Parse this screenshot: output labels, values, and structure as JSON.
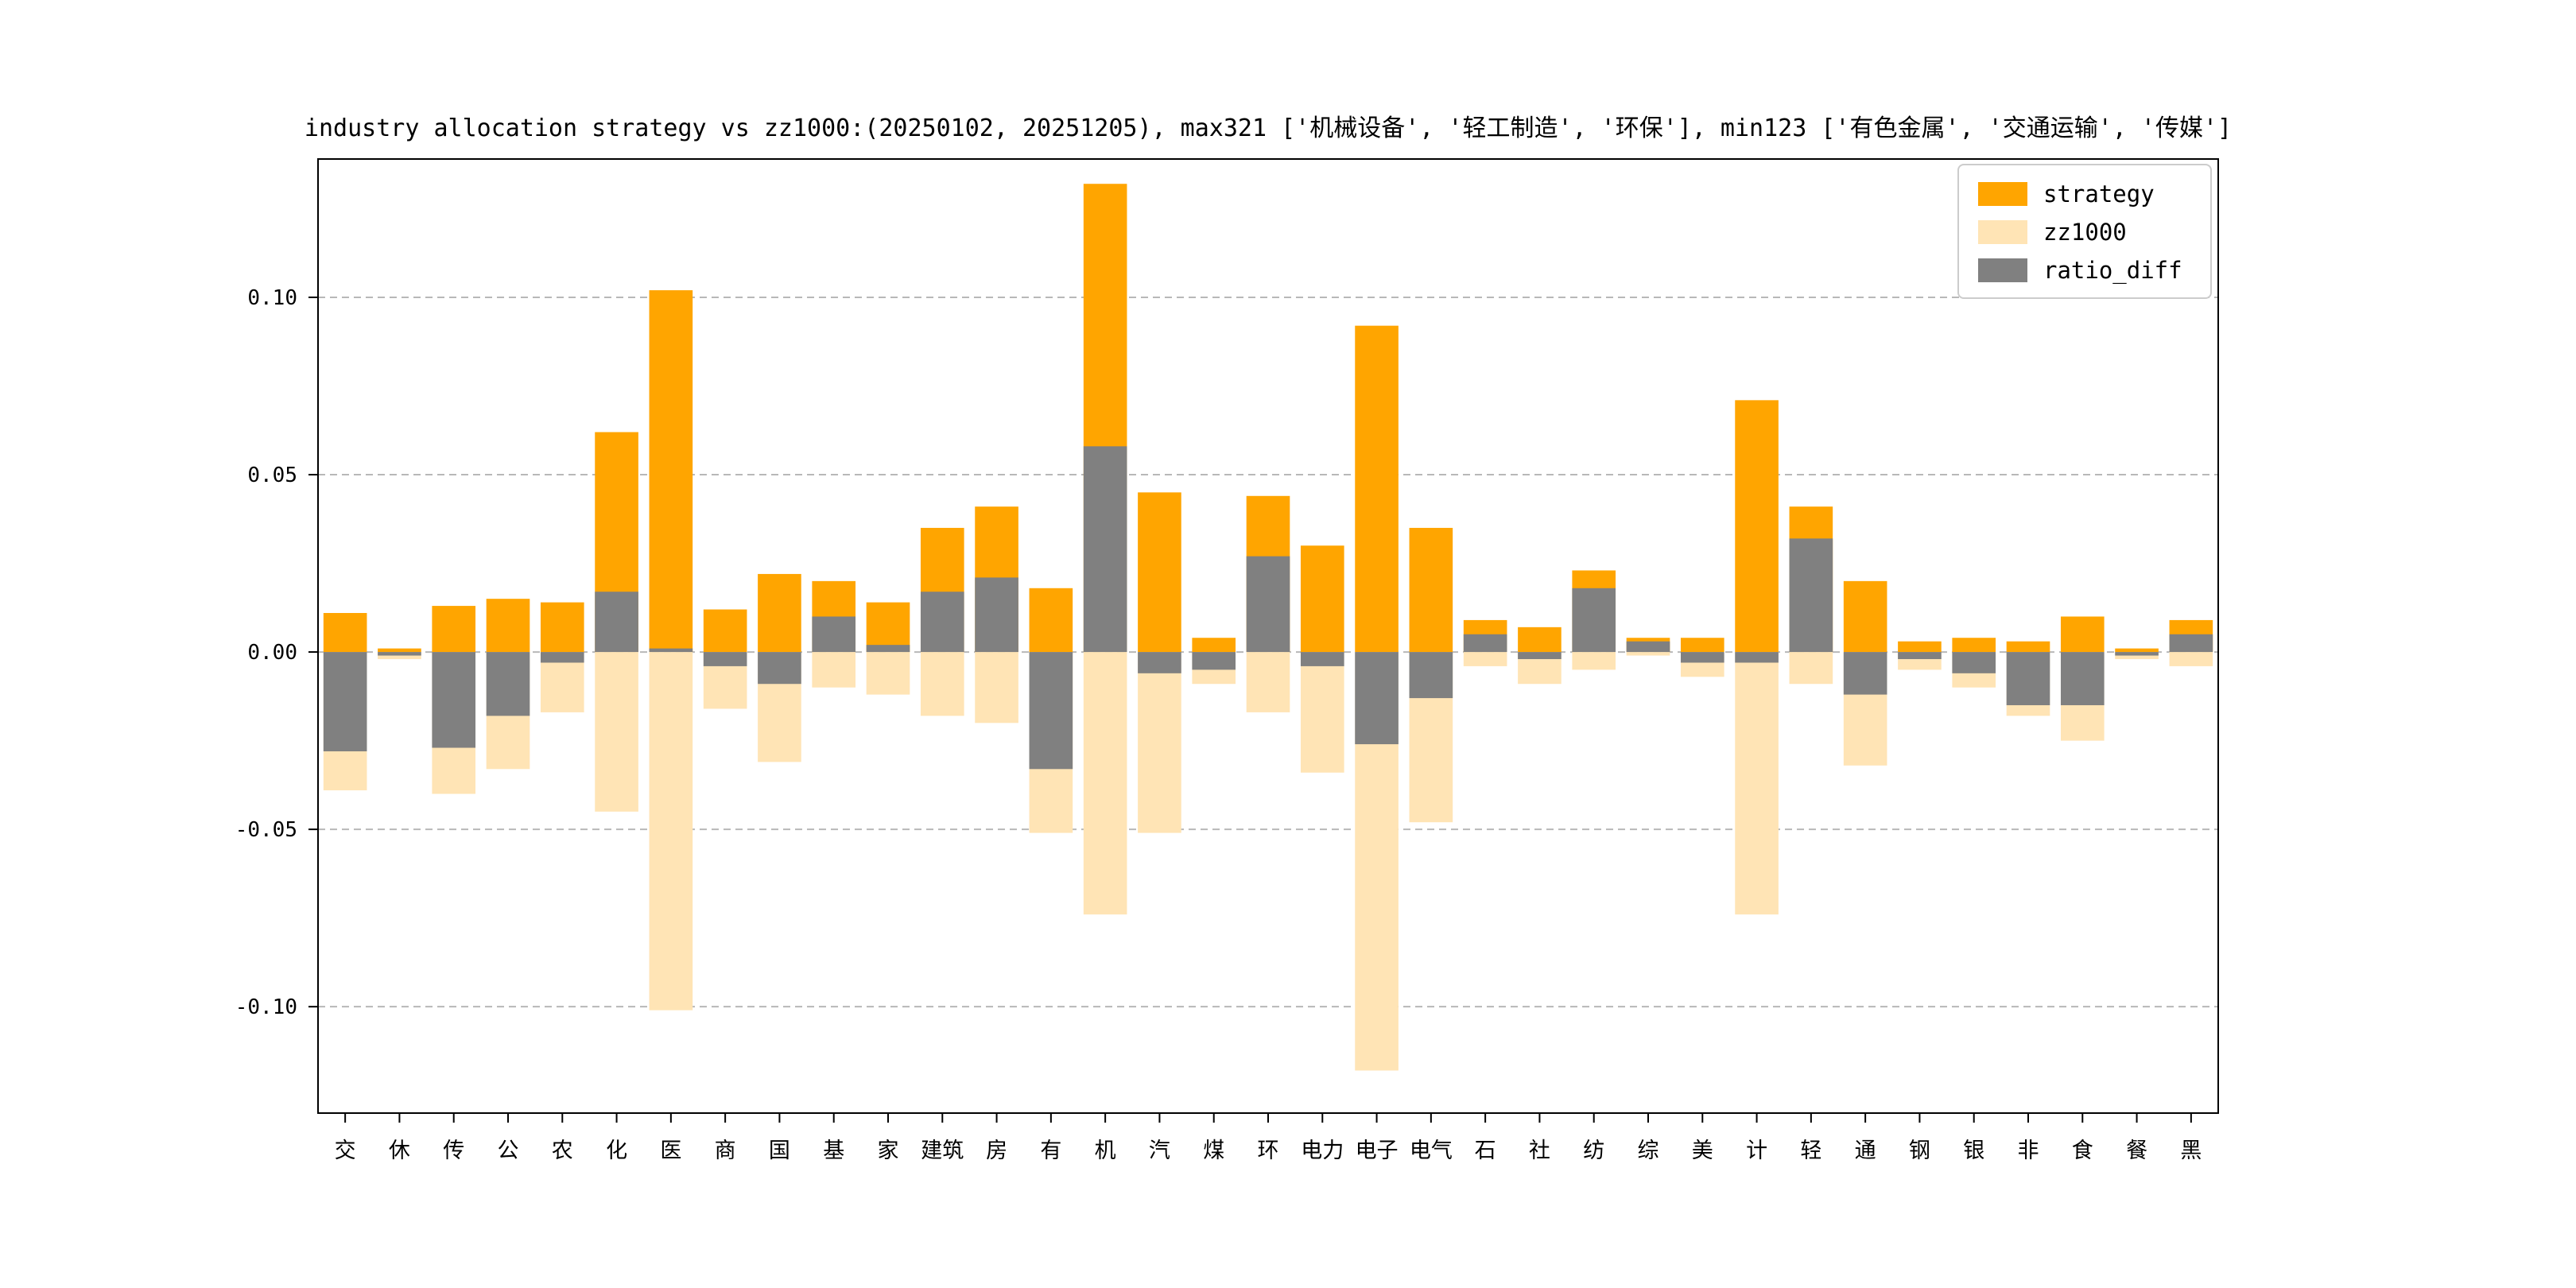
{
  "chart_data": {
    "type": "bar",
    "title": "industry allocation strategy vs zz1000:(20250102, 20251205), max321 ['机械设备', '轻工制造', '环保'], min123 ['有色金属', '交通运输', '传媒']",
    "categories": [
      "交",
      "休",
      "传",
      "公",
      "农",
      "化",
      "医",
      "商",
      "国",
      "基",
      "家",
      "建筑",
      "房",
      "有",
      "机",
      "汽",
      "煤",
      "环",
      "电力",
      "电子",
      "电气",
      "石",
      "社",
      "纺",
      "综",
      "美",
      "计",
      "轻",
      "通",
      "钢",
      "银",
      "非",
      "食",
      "餐",
      "黑"
    ],
    "series": [
      {
        "name": "strategy",
        "color": "#FFA500",
        "values": [
          0.011,
          0.001,
          0.013,
          0.015,
          0.014,
          0.062,
          0.102,
          0.012,
          0.022,
          0.02,
          0.014,
          0.035,
          0.041,
          0.018,
          0.132,
          0.045,
          0.004,
          0.044,
          0.03,
          0.092,
          0.035,
          0.009,
          0.007,
          0.023,
          0.004,
          0.004,
          0.071,
          0.041,
          0.02,
          0.003,
          0.004,
          0.003,
          0.01,
          0.001,
          0.009
        ]
      },
      {
        "name": "zz1000",
        "color": "#FFE4B5",
        "values": [
          -0.039,
          -0.002,
          -0.04,
          -0.033,
          -0.017,
          -0.045,
          -0.101,
          -0.016,
          -0.031,
          -0.01,
          -0.012,
          -0.018,
          -0.02,
          -0.051,
          -0.074,
          -0.051,
          -0.009,
          -0.017,
          -0.034,
          -0.118,
          -0.048,
          -0.004,
          -0.009,
          -0.005,
          -0.001,
          -0.007,
          -0.074,
          -0.009,
          -0.032,
          -0.005,
          -0.01,
          -0.018,
          -0.025,
          -0.002,
          -0.004
        ]
      },
      {
        "name": "ratio_diff",
        "color": "#808080",
        "values": [
          -0.028,
          -0.001,
          -0.027,
          -0.018,
          -0.003,
          0.017,
          0.001,
          -0.004,
          -0.009,
          0.01,
          0.002,
          0.017,
          0.021,
          -0.033,
          0.058,
          -0.006,
          -0.005,
          0.027,
          -0.004,
          -0.026,
          -0.013,
          0.005,
          -0.002,
          0.018,
          0.003,
          -0.003,
          -0.003,
          0.032,
          -0.012,
          -0.002,
          -0.006,
          -0.015,
          -0.015,
          -0.001,
          0.005
        ]
      }
    ],
    "yticks": [
      0.1,
      0.05,
      0.0,
      -0.05,
      -0.1
    ],
    "ytick_labels": [
      "0.10",
      "0.05",
      "0.00",
      "-0.05",
      "-0.10"
    ],
    "ylim": [
      -0.13,
      0.139
    ],
    "xlabel": "",
    "ylabel": "",
    "grid": "dashed-horizontal",
    "legend_position": "upper right"
  }
}
